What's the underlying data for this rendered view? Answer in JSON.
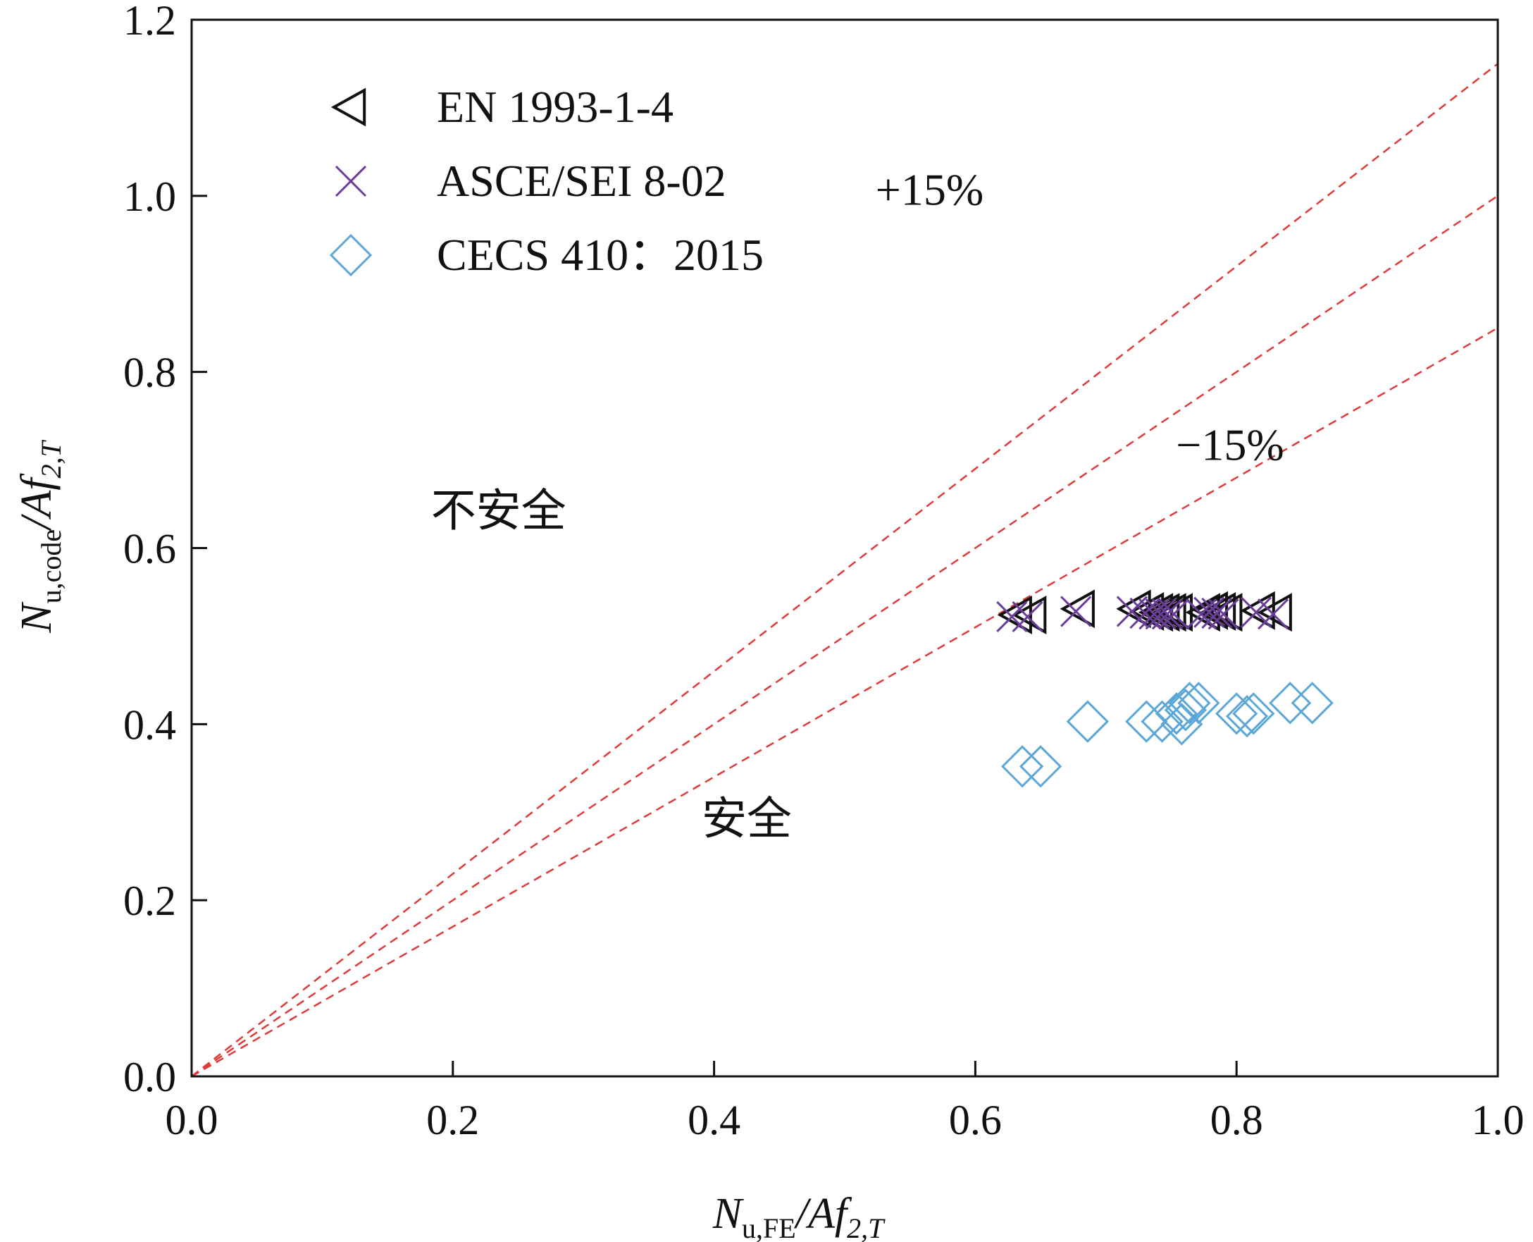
{
  "chart_data": {
    "type": "scatter",
    "xlabel": {
      "main": "N",
      "sub": "u,FE",
      "mid": "/Af",
      "sub2": "2,T"
    },
    "ylabel": {
      "main": "N",
      "sub": "u,code",
      "mid": "/Af",
      "sub2": "2,T"
    },
    "xlim": [
      0,
      1.0
    ],
    "ylim": [
      0,
      1.2
    ],
    "xticks": [
      "0.0",
      "0.2",
      "0.4",
      "0.6",
      "0.8",
      "1.0"
    ],
    "yticks": [
      "0.0",
      "0.2",
      "0.4",
      "0.6",
      "0.8",
      "1.0",
      "1.2"
    ],
    "grid": false,
    "legend_position": "top-left",
    "reference_lines": [
      {
        "slope": 1.15,
        "style": "dashed",
        "color": "#e03a3a"
      },
      {
        "slope": 1.0,
        "style": "dashed",
        "color": "#e03a3a"
      },
      {
        "slope": 0.85,
        "style": "dashed",
        "color": "#e03a3a"
      }
    ],
    "annotations": [
      {
        "text": "+15%",
        "x": 0.565,
        "y": 0.99
      },
      {
        "text": "−15%",
        "x": 0.795,
        "y": 0.7
      },
      {
        "text": "不安全",
        "x": 0.235,
        "y": 0.625
      },
      {
        "text": "安全",
        "x": 0.425,
        "y": 0.275
      }
    ],
    "series": [
      {
        "name": "EN 1993-1-4",
        "marker": "triangle-left",
        "color": "#111111",
        "points": [
          [
            0.632,
            0.524
          ],
          [
            0.643,
            0.524
          ],
          [
            0.68,
            0.531
          ],
          [
            0.723,
            0.531
          ],
          [
            0.733,
            0.528
          ],
          [
            0.74,
            0.527
          ],
          [
            0.745,
            0.527
          ],
          [
            0.75,
            0.527
          ],
          [
            0.755,
            0.527
          ],
          [
            0.776,
            0.527
          ],
          [
            0.782,
            0.529
          ],
          [
            0.788,
            0.528
          ],
          [
            0.793,
            0.527
          ],
          [
            0.818,
            0.529
          ],
          [
            0.831,
            0.527
          ]
        ]
      },
      {
        "name": "ASCE/SEI 8-02",
        "marker": "x",
        "color": "#6a3d9a",
        "points": [
          [
            0.628,
            0.522
          ],
          [
            0.64,
            0.522
          ],
          [
            0.677,
            0.528
          ],
          [
            0.72,
            0.528
          ],
          [
            0.73,
            0.526
          ],
          [
            0.737,
            0.525
          ],
          [
            0.742,
            0.525
          ],
          [
            0.747,
            0.525
          ],
          [
            0.752,
            0.525
          ],
          [
            0.773,
            0.525
          ],
          [
            0.779,
            0.527
          ],
          [
            0.785,
            0.526
          ],
          [
            0.79,
            0.525
          ],
          [
            0.815,
            0.527
          ],
          [
            0.828,
            0.525
          ]
        ]
      },
      {
        "name": "CECS 410：2015",
        "marker": "diamond",
        "color": "#5aa7d8",
        "points": [
          [
            0.636,
            0.352
          ],
          [
            0.65,
            0.352
          ],
          [
            0.686,
            0.403
          ],
          [
            0.731,
            0.403
          ],
          [
            0.743,
            0.403
          ],
          [
            0.754,
            0.412
          ],
          [
            0.758,
            0.4
          ],
          [
            0.761,
            0.416
          ],
          [
            0.764,
            0.424
          ],
          [
            0.771,
            0.424
          ],
          [
            0.8,
            0.412
          ],
          [
            0.808,
            0.409
          ],
          [
            0.813,
            0.412
          ],
          [
            0.841,
            0.424
          ],
          [
            0.858,
            0.424
          ]
        ]
      }
    ]
  }
}
